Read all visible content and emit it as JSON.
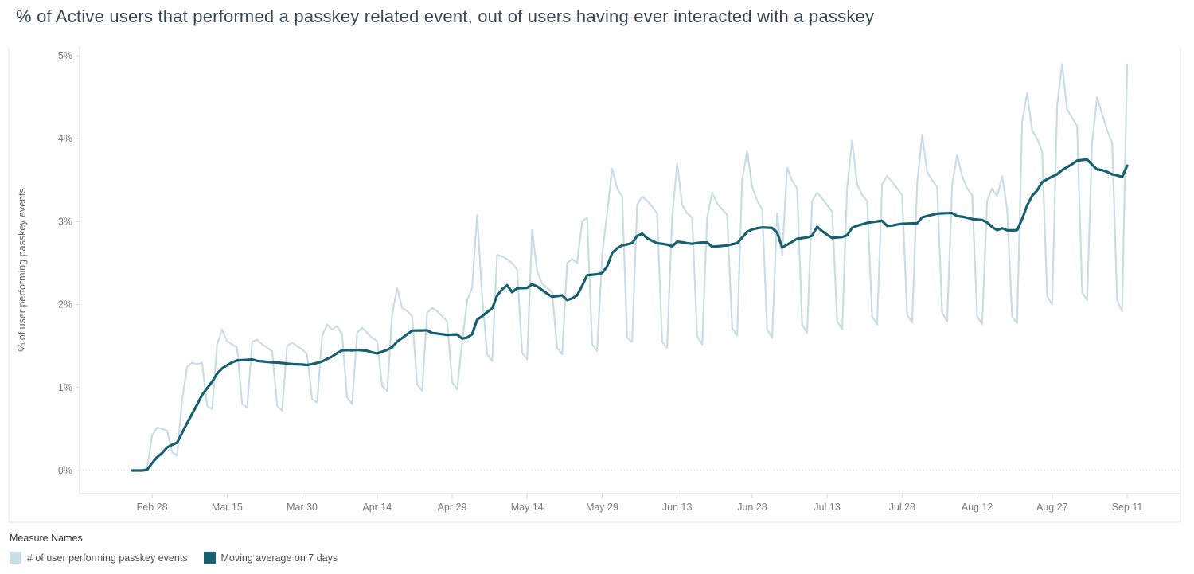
{
  "title": "% of Active users that performed a passkey related event, out of users having ever interacted with a passkey",
  "legend": {
    "title": "Measure Names",
    "items": [
      {
        "label": "# of user performing passkey events",
        "color": "#c9dde8"
      },
      {
        "label": "Moving average on 7 days",
        "color": "#17606f"
      }
    ]
  },
  "chart_data": {
    "type": "line",
    "title": "% of Active users that performed a passkey related event, out of users having ever interacted with a passkey",
    "xlabel": "",
    "ylabel": "% of user performing passkey events",
    "ylim": [
      0,
      5
    ],
    "grid": "zero-line-only",
    "legend_position": "bottom-left",
    "x_unit": "day",
    "y_ticks": [
      {
        "label": "0%",
        "value": 0
      },
      {
        "label": "1%",
        "value": 1
      },
      {
        "label": "2%",
        "value": 2
      },
      {
        "label": "3%",
        "value": 3
      },
      {
        "label": "4%",
        "value": 4
      },
      {
        "label": "5%",
        "value": 5
      }
    ],
    "x_ticks": [
      {
        "label": "Feb 28",
        "day": 4
      },
      {
        "label": "Mar 15",
        "day": 19
      },
      {
        "label": "Mar 30",
        "day": 34
      },
      {
        "label": "Apr 14",
        "day": 49
      },
      {
        "label": "Apr 29",
        "day": 64
      },
      {
        "label": "May 14",
        "day": 79
      },
      {
        "label": "May 29",
        "day": 94
      },
      {
        "label": "Jun 13",
        "day": 109
      },
      {
        "label": "Jun 28",
        "day": 124
      },
      {
        "label": "Jul 13",
        "day": 139
      },
      {
        "label": "Jul 28",
        "day": 154
      },
      {
        "label": "Aug 12",
        "day": 169
      },
      {
        "label": "Aug 27",
        "day": 184
      },
      {
        "label": "Sep 11",
        "day": 199
      }
    ],
    "series": [
      {
        "name": "# of user performing passkey events",
        "color": "#c9dde8",
        "values": [
          0,
          0,
          0,
          0.03,
          0.42,
          0.52,
          0.5,
          0.48,
          0.22,
          0.18,
          0.85,
          1.25,
          1.3,
          1.28,
          1.3,
          0.78,
          0.74,
          1.52,
          1.7,
          1.56,
          1.52,
          1.48,
          0.8,
          0.76,
          1.55,
          1.58,
          1.52,
          1.48,
          1.44,
          0.78,
          0.72,
          1.5,
          1.54,
          1.5,
          1.46,
          1.4,
          0.86,
          0.82,
          1.62,
          1.76,
          1.7,
          1.74,
          1.64,
          0.88,
          0.8,
          1.66,
          1.72,
          1.66,
          1.6,
          1.56,
          1.02,
          0.96,
          1.88,
          2.2,
          1.96,
          1.92,
          1.86,
          1.04,
          0.96,
          1.9,
          1.96,
          1.92,
          1.86,
          1.8,
          1.06,
          0.98,
          1.55,
          2.05,
          2.2,
          3.08,
          2.1,
          1.4,
          1.32,
          2.6,
          2.58,
          2.55,
          2.5,
          2.42,
          1.42,
          1.34,
          2.9,
          2.4,
          2.25,
          2.2,
          2.15,
          1.48,
          1.4,
          2.5,
          2.55,
          2.5,
          3.0,
          3.05,
          1.52,
          1.44,
          2.6,
          3.1,
          3.64,
          3.4,
          3.3,
          1.6,
          1.55,
          3.2,
          3.3,
          3.25,
          3.18,
          3.1,
          1.55,
          1.48,
          3.05,
          3.7,
          3.2,
          3.1,
          3.05,
          1.62,
          1.52,
          3.05,
          3.35,
          3.22,
          3.15,
          3.08,
          1.72,
          1.62,
          3.5,
          3.85,
          3.42,
          3.25,
          3.15,
          1.7,
          1.6,
          3.1,
          2.6,
          3.65,
          3.5,
          3.4,
          1.76,
          1.66,
          3.25,
          3.35,
          3.28,
          3.2,
          3.12,
          1.8,
          1.7,
          3.4,
          3.98,
          3.45,
          3.32,
          3.25,
          1.86,
          1.76,
          3.45,
          3.55,
          3.48,
          3.4,
          3.32,
          1.88,
          1.78,
          3.45,
          4.05,
          3.6,
          3.5,
          3.42,
          1.9,
          1.8,
          3.45,
          3.8,
          3.55,
          3.4,
          3.32,
          1.86,
          1.76,
          3.25,
          3.4,
          3.3,
          3.55,
          3.15,
          1.85,
          1.78,
          4.2,
          4.55,
          4.1,
          4.0,
          3.85,
          2.1,
          2.0,
          4.4,
          4.9,
          4.35,
          4.25,
          4.15,
          2.15,
          2.05,
          3.95,
          4.5,
          4.3,
          4.1,
          3.95,
          2.05,
          1.92,
          4.9
        ]
      },
      {
        "name": "Moving average on 7 days",
        "color": "#17606f",
        "derived_from": "7-day trailing moving average of the daily series",
        "window_days": 7
      }
    ]
  }
}
